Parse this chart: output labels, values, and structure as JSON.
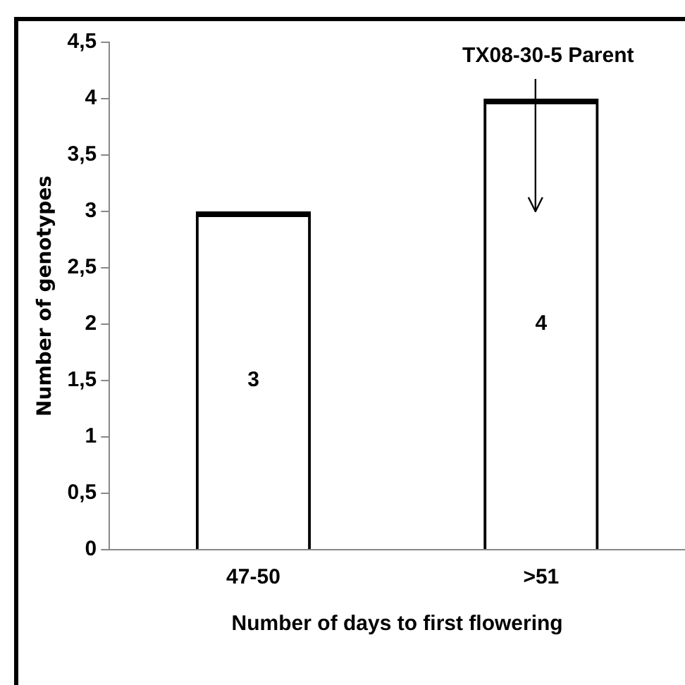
{
  "chart_data": {
    "type": "bar",
    "xlabel": "Number of days to first flowering",
    "ylabel": "Number of genotypes",
    "categories": [
      "47-50",
      ">51"
    ],
    "values": [
      3,
      4
    ],
    "color": "#000000",
    "ylim": [
      0,
      4.5
    ],
    "yticks": [
      0,
      {
        "value": 0.5,
        "label": "0,5"
      },
      1,
      {
        "value": 1.5,
        "label": "1,5"
      },
      2,
      {
        "value": 2.5,
        "label": "2,5"
      },
      3,
      {
        "value": 3.5,
        "label": "3,5"
      },
      4,
      {
        "value": 4.5,
        "label": "4,5"
      }
    ],
    "grid": false,
    "legend": false,
    "data_labels": true,
    "annotations": [
      "TX08-30-5 Parent"
    ]
  }
}
